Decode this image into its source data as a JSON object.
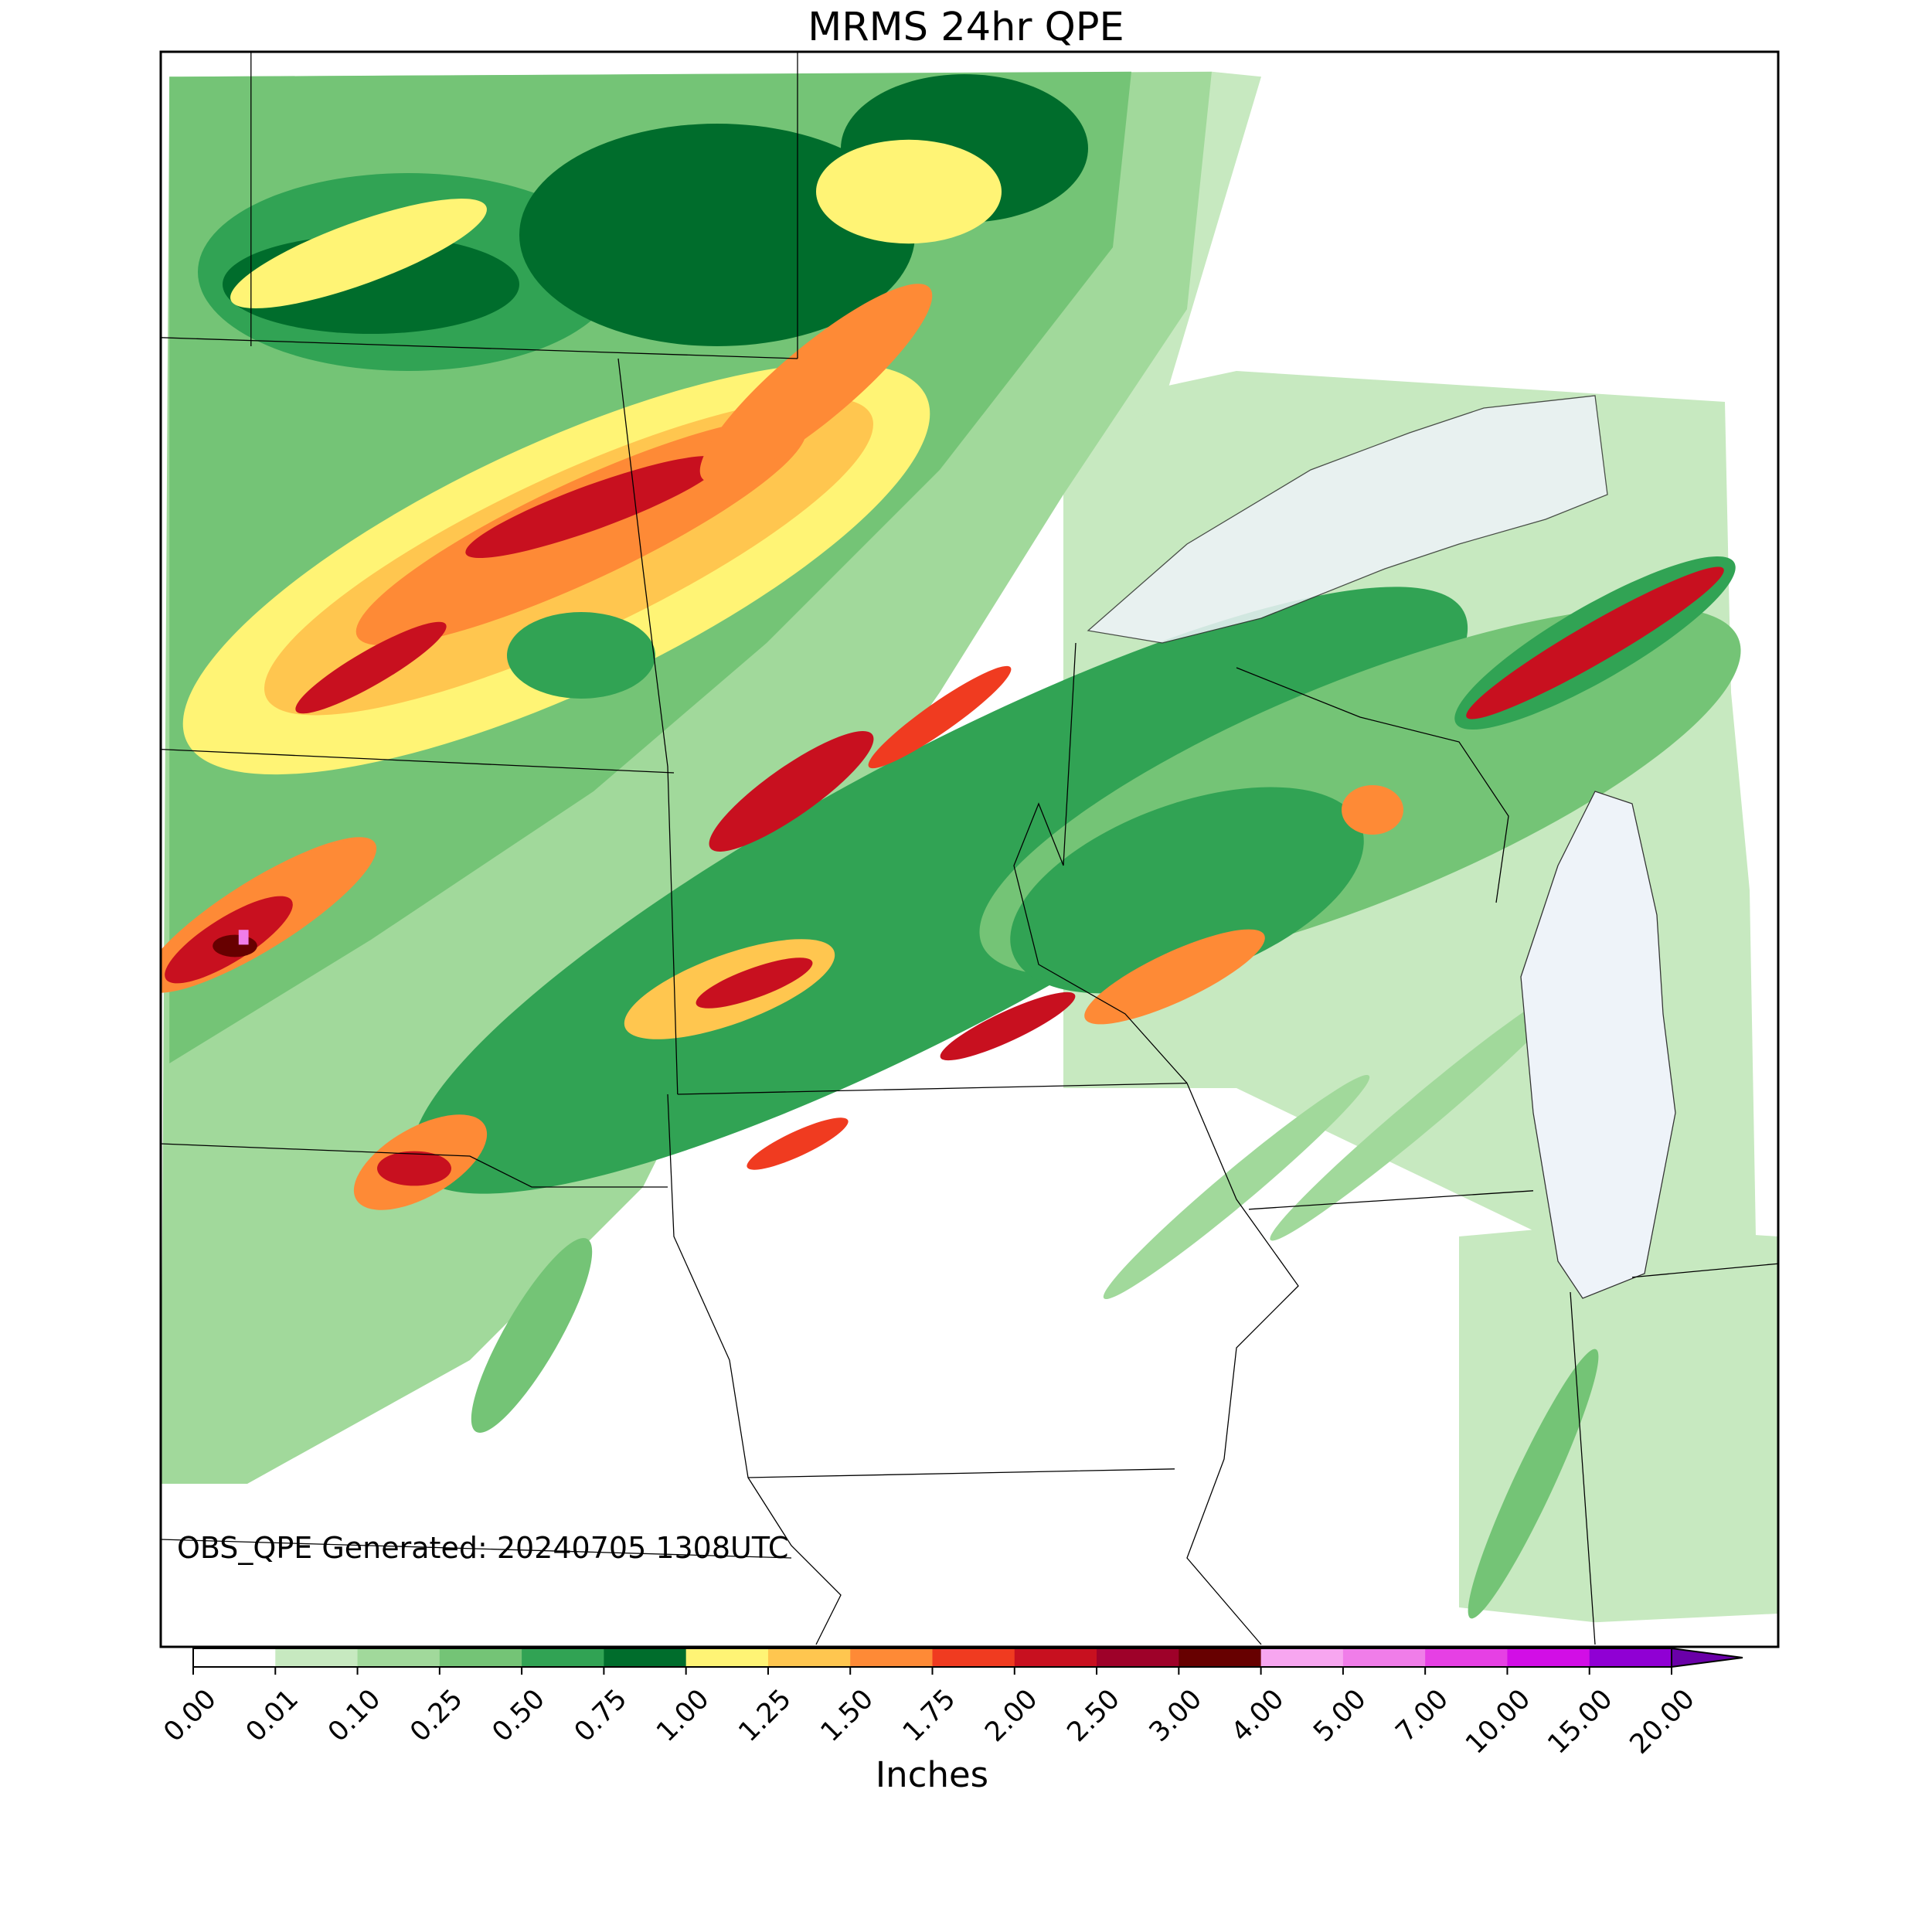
{
  "title": "MRMS 24hr QPE",
  "annotation": "OBS_QPE Generated: 20240705 1308UTC",
  "colorbar": {
    "label": "Inches",
    "ticks": [
      {
        "value": 0,
        "label": "0.00"
      },
      {
        "value": 0.01,
        "label": "0.01"
      },
      {
        "value": 0.1,
        "label": "0.10"
      },
      {
        "value": 0.25,
        "label": "0.25"
      },
      {
        "value": 0.5,
        "label": "0.50"
      },
      {
        "value": 0.75,
        "label": "0.75"
      },
      {
        "value": 1,
        "label": "1.00"
      },
      {
        "value": 1.25,
        "label": "1.25"
      },
      {
        "value": 1.5,
        "label": "1.50"
      },
      {
        "value": 1.75,
        "label": "1.75"
      },
      {
        "value": 2,
        "label": "2.00"
      },
      {
        "value": 2.5,
        "label": "2.50"
      },
      {
        "value": 3,
        "label": "3.00"
      },
      {
        "value": 4,
        "label": "4.00"
      },
      {
        "value": 5,
        "label": "5.00"
      },
      {
        "value": 7,
        "label": "7.00"
      },
      {
        "value": 10,
        "label": "10.00"
      },
      {
        "value": 15,
        "label": "15.00"
      },
      {
        "value": 20,
        "label": "20.00"
      }
    ],
    "colors": [
      "#ffffff",
      "#c7e9c0",
      "#a1d99b",
      "#74c476",
      "#31a354",
      "#006d2c",
      "#fff475",
      "#ffc64f",
      "#fe8a36",
      "#f03b20",
      "#c8101f",
      "#9e0129",
      "#670000",
      "#f7a6f0",
      "#f07de9",
      "#e640e4",
      "#d20ee6",
      "#9000d4"
    ],
    "extend_color": "#6a00a8"
  }
}
